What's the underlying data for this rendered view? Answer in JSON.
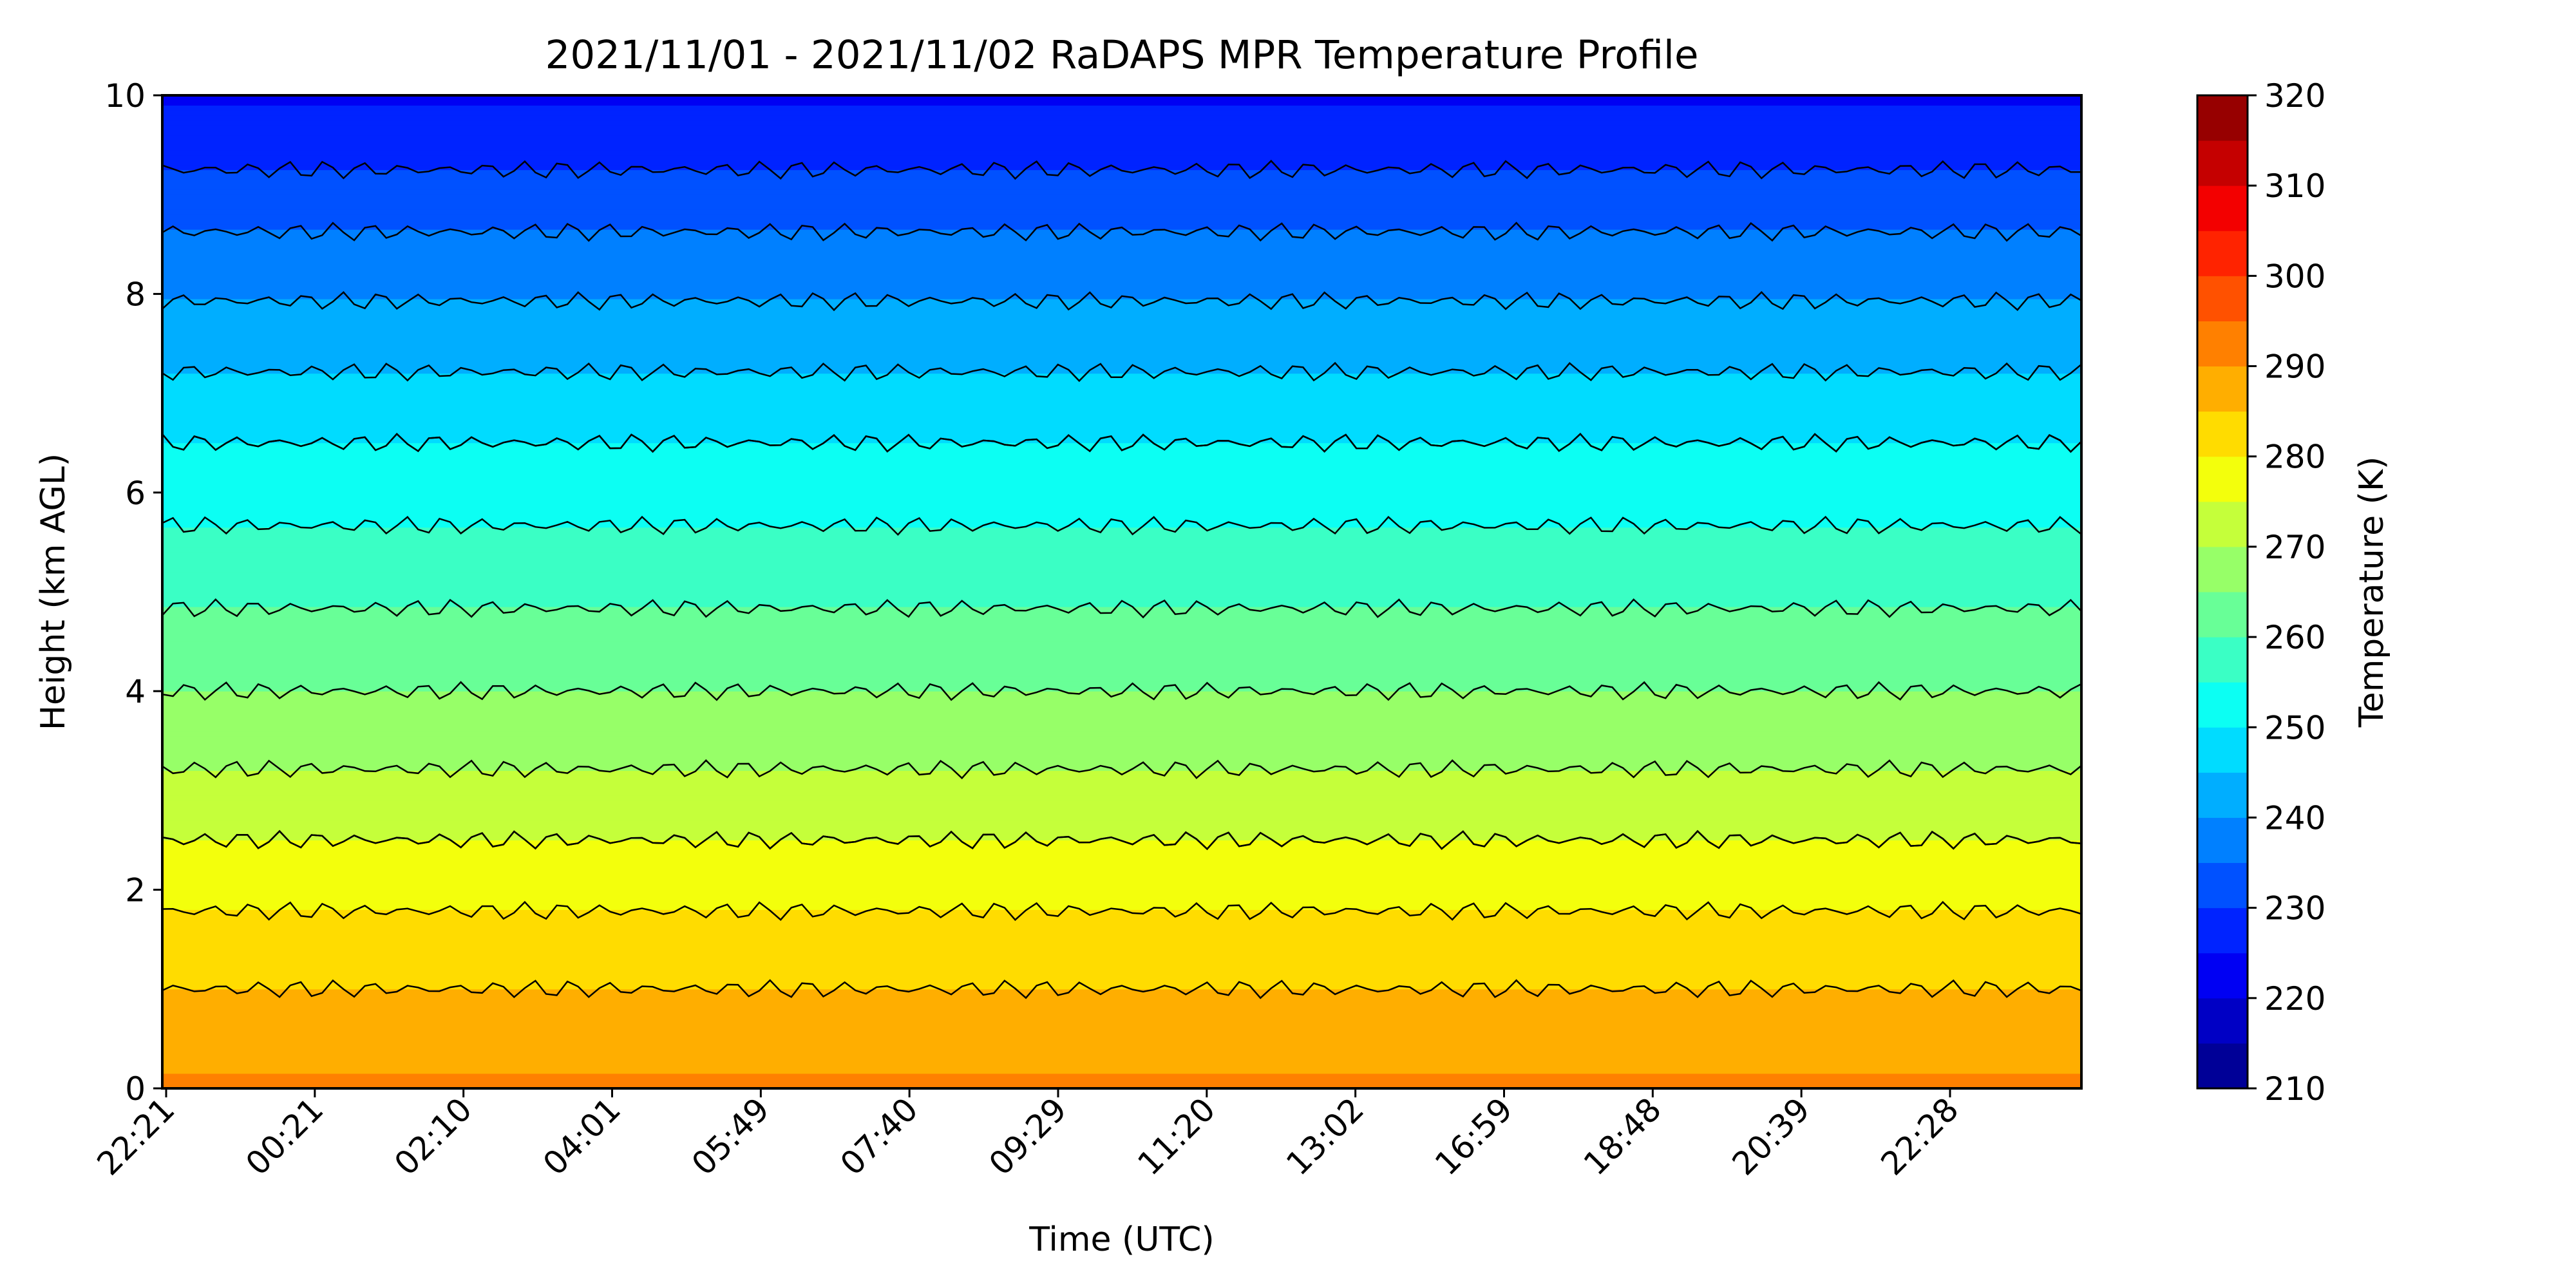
{
  "chart_data": {
    "type": "heatmap",
    "title": "2021/11/01 - 2021/11/02 RaDAPS MPR Temperature Profile",
    "xlabel": "Time (UTC)",
    "ylabel": "Height (km AGL)",
    "ylim": [
      0,
      10
    ],
    "yticks": [
      "0",
      "2",
      "4",
      "6",
      "8",
      "10"
    ],
    "xticks": [
      "22:21",
      "00:21",
      "02:10",
      "04:01",
      "05:49",
      "07:40",
      "09:29",
      "11:20",
      "13:02",
      "16:59",
      "18:48",
      "20:39",
      "22:28"
    ],
    "grid": false,
    "colorbar": {
      "label": "Temperature (K)",
      "range": [
        210,
        320
      ],
      "ticks": [
        "210",
        "220",
        "230",
        "240",
        "250",
        "260",
        "270",
        "280",
        "290",
        "300",
        "310",
        "320"
      ],
      "colormap": "jet",
      "levels_step": 5
    },
    "series": [
      {
        "values": [
          {
            "height": 0.5,
            "temperature": 288
          },
          {
            "height": 1.5,
            "temperature": 282
          },
          {
            "height": 2.5,
            "temperature": 275
          },
          {
            "height": 3.5,
            "temperature": 268
          },
          {
            "height": 4.5,
            "temperature": 262
          },
          {
            "height": 5.5,
            "temperature": 256
          },
          {
            "height": 6.5,
            "temperature": 250
          },
          {
            "height": 7.5,
            "temperature": 243
          },
          {
            "height": 8.5,
            "temperature": 236
          },
          {
            "height": 9.5,
            "temperature": 228
          }
        ]
      }
    ]
  }
}
